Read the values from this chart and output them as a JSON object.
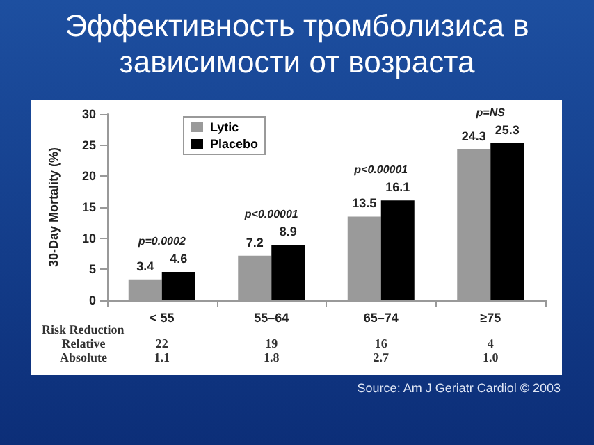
{
  "chart_data": {
    "type": "bar",
    "title": "Эффективность тромболизиса в зависимости от возраста",
    "ylabel": "30-Day Mortality (%)",
    "categories": [
      "< 55",
      "55–64",
      "65–74",
      "≥75"
    ],
    "series": [
      {
        "name": "Lytic",
        "color": "#9a9a9a",
        "values": [
          3.4,
          7.2,
          13.5,
          24.3
        ]
      },
      {
        "name": "Placebo",
        "color": "#000000",
        "values": [
          4.6,
          8.9,
          16.1,
          25.3
        ]
      }
    ],
    "ylim": [
      0,
      30
    ],
    "yticks": [
      0,
      5,
      10,
      15,
      20,
      25,
      30
    ],
    "grid": false,
    "legend": "top left",
    "data_labels": true,
    "annotations": [
      "p=0.0002",
      "p<0.00001",
      "p<0.00001",
      "p=NS",
      "Risk Reduction",
      "Relative",
      "22",
      "19",
      "16",
      "4",
      "Absolute",
      "1.1",
      "1.8",
      "2.7",
      "1.0",
      "Source: Am J Geriatr Cardiol © 2003"
    ]
  }
}
